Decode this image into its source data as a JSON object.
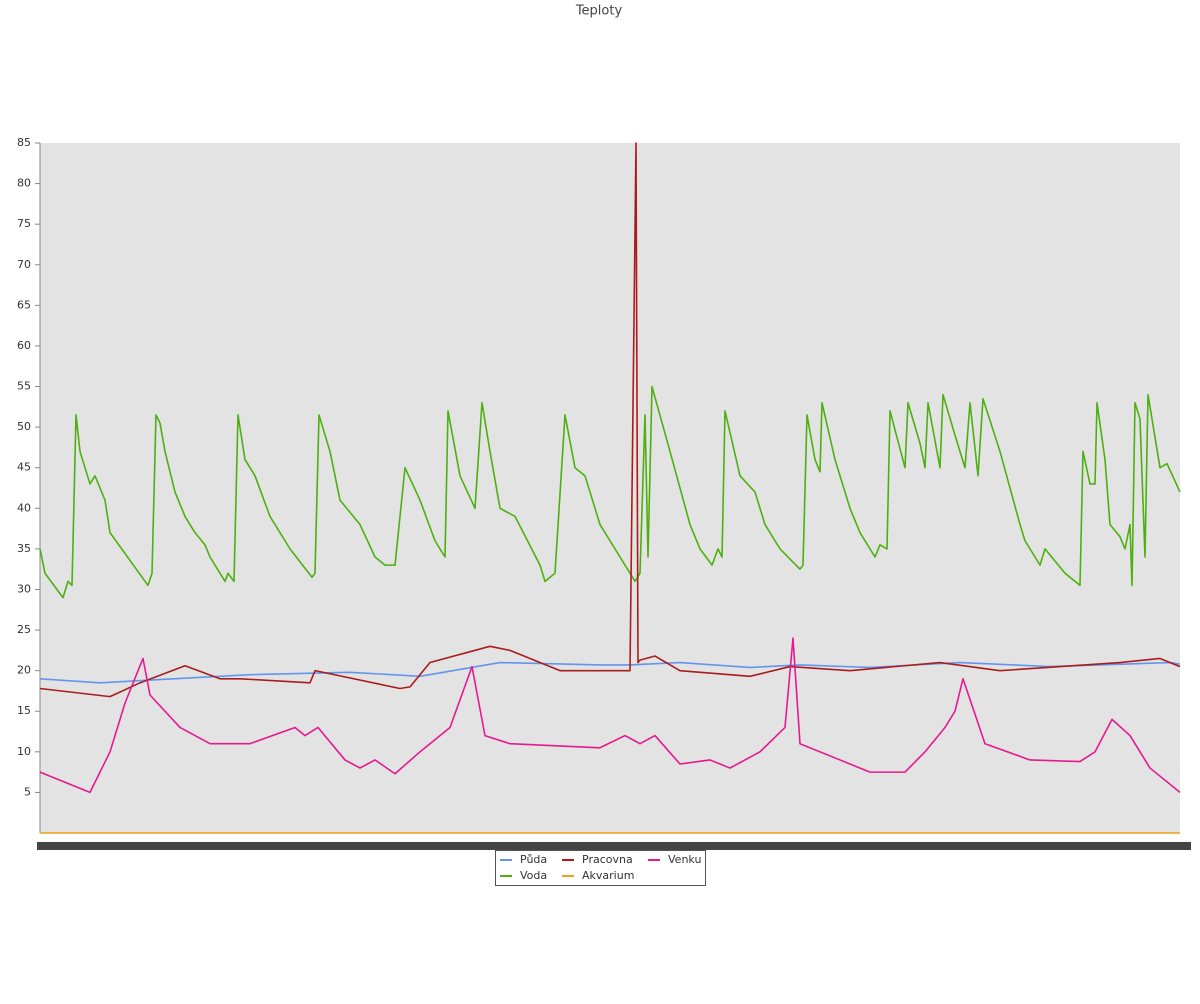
{
  "chart_data": {
    "type": "line",
    "title": "Teploty",
    "xlim": [
      0,
      1140
    ],
    "ylim": [
      0,
      85
    ],
    "yticks": [
      5,
      10,
      15,
      20,
      25,
      30,
      35,
      40,
      45,
      50,
      55,
      60,
      65,
      70,
      75,
      80,
      85
    ],
    "legend": "bottom",
    "series": [
      {
        "name": "Půda",
        "color": "#6495ed",
        "x": [
          0,
          60,
          210,
          310,
          380,
          460,
          560,
          590,
          640,
          710,
          760,
          830,
          920,
          1010,
          1130,
          1140
        ],
        "values": [
          19,
          18.5,
          19.5,
          19.8,
          19.3,
          21,
          20.7,
          20.7,
          21,
          20.4,
          20.7,
          20.4,
          21,
          20.5,
          21,
          20.8
        ]
      },
      {
        "name": "Voda",
        "color": "#4db010",
        "x": [
          0,
          5,
          23,
          28,
          32,
          36,
          40,
          50,
          55,
          65,
          70,
          108,
          112,
          116,
          120,
          125,
          135,
          145,
          155,
          165,
          170,
          185,
          188,
          194,
          198,
          205,
          215,
          230,
          250,
          272,
          275,
          279,
          290,
          300,
          320,
          335,
          345,
          355,
          365,
          380,
          395,
          405,
          408,
          420,
          435,
          442,
          450,
          460,
          475,
          500,
          505,
          515,
          525,
          535,
          545,
          560,
          575,
          595,
          600,
          605,
          608,
          612,
          630,
          650,
          660,
          672,
          678,
          682,
          685,
          700,
          715,
          725,
          740,
          760,
          763,
          767,
          775,
          780,
          782,
          795,
          810,
          820,
          835,
          840,
          847,
          850,
          865,
          868,
          880,
          885,
          888,
          900,
          903,
          915,
          925,
          930,
          938,
          943,
          960,
          980,
          985,
          1000,
          1005,
          1025,
          1040,
          1043,
          1050,
          1055,
          1057,
          1065,
          1070,
          1080,
          1085,
          1090,
          1092,
          1095,
          1100,
          1105,
          1108,
          1120,
          1127,
          1140
        ],
        "values": [
          35,
          32,
          29,
          31,
          30.5,
          51.5,
          47,
          43,
          44,
          41,
          37,
          30.5,
          32,
          51.5,
          50.5,
          47,
          42,
          39,
          37,
          35.5,
          34,
          31,
          32,
          31,
          51.5,
          46,
          44,
          39,
          35,
          31.5,
          32,
          51.5,
          47,
          41,
          38,
          34,
          33,
          33,
          45,
          41,
          36,
          34,
          52,
          44,
          40,
          53,
          47,
          40,
          39,
          33,
          31,
          32,
          51.5,
          45,
          44,
          38,
          35,
          31,
          32,
          51.5,
          34,
          55,
          47,
          38,
          35,
          33,
          35,
          34,
          52,
          44,
          42,
          38,
          35,
          32.5,
          33,
          51.5,
          46,
          44.5,
          53,
          46,
          40,
          37,
          34,
          35.5,
          35,
          52,
          45,
          53,
          48,
          45,
          53,
          45,
          54,
          49,
          45,
          53,
          44,
          53.5,
          47,
          38,
          36,
          33,
          35,
          32,
          30.5,
          47,
          43,
          43,
          53,
          46,
          38,
          36.5,
          35,
          38,
          30.5,
          53,
          51,
          34,
          54,
          45,
          45.5,
          42
        ]
      },
      {
        "name": "Pracovna",
        "color": "#aa1c1c",
        "x": [
          0,
          70,
          100,
          145,
          180,
          200,
          270,
          275,
          360,
          370,
          390,
          450,
          470,
          520,
          590,
          596,
          598,
          600,
          615,
          640,
          710,
          750,
          810,
          900,
          960,
          1080,
          1120,
          1140
        ],
        "values": [
          17.8,
          16.8,
          18.5,
          20.6,
          19,
          19,
          18.5,
          20,
          17.8,
          18,
          21,
          23,
          22.5,
          20,
          20,
          85,
          21,
          21.3,
          21.8,
          20,
          19.3,
          20.5,
          20,
          21,
          20,
          21,
          21.5,
          20.5
        ]
      },
      {
        "name": "Akvarium",
        "color": "#e8a317",
        "x": [
          0,
          1140
        ],
        "values": [
          0,
          0
        ]
      },
      {
        "name": "Venku",
        "color": "#e6198f",
        "x": [
          0,
          50,
          70,
          85,
          103,
          110,
          140,
          170,
          210,
          255,
          265,
          278,
          305,
          320,
          335,
          355,
          380,
          410,
          432,
          445,
          470,
          560,
          585,
          600,
          615,
          640,
          670,
          690,
          720,
          745,
          753,
          760,
          800,
          830,
          865,
          885,
          905,
          915,
          923,
          945,
          990,
          1040,
          1055,
          1072,
          1090,
          1110,
          1140
        ],
        "values": [
          7.5,
          5,
          10,
          16,
          21.5,
          17,
          13,
          11,
          11,
          13,
          12,
          13,
          9,
          8,
          9,
          7.3,
          10,
          13,
          20.5,
          12,
          11,
          10.5,
          12,
          11,
          12,
          8.5,
          9,
          8,
          10,
          13,
          24,
          11,
          9,
          7.5,
          7.5,
          10,
          13,
          15,
          19,
          11,
          9,
          8.8,
          10,
          14,
          12,
          8,
          5
        ]
      }
    ]
  }
}
